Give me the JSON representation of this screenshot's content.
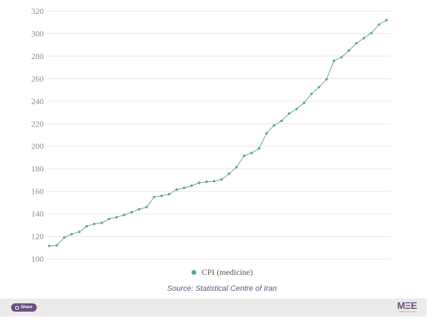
{
  "chart_data": {
    "type": "line",
    "title": "",
    "xlabel": "",
    "ylabel": "",
    "ylim": [
      100,
      320
    ],
    "yticks": [
      100,
      120,
      140,
      160,
      180,
      200,
      220,
      240,
      260,
      280,
      300,
      320
    ],
    "grid": true,
    "legend_position": "bottom",
    "series": [
      {
        "name": "CPI (medicine)",
        "color": "#5aa59f",
        "values": [
          111.5,
          112,
          119,
          122,
          124,
          129,
          131,
          132,
          135.5,
          137,
          139,
          141.5,
          144,
          146,
          155,
          156,
          157.5,
          161.5,
          163,
          165,
          167.5,
          168.5,
          169,
          170.5,
          175.5,
          181.5,
          191.5,
          194,
          198,
          211.5,
          218.5,
          222.5,
          229,
          233,
          238.5,
          246.5,
          252.5,
          259.5,
          276,
          279,
          285,
          291.5,
          296,
          300.5,
          308,
          312
        ]
      }
    ]
  },
  "source": "Source: Statistical Centre of Iran",
  "footer": {
    "share_label": "Share",
    "logo_text": "MΞE",
    "logo_sub": "middleeasteye.net"
  }
}
